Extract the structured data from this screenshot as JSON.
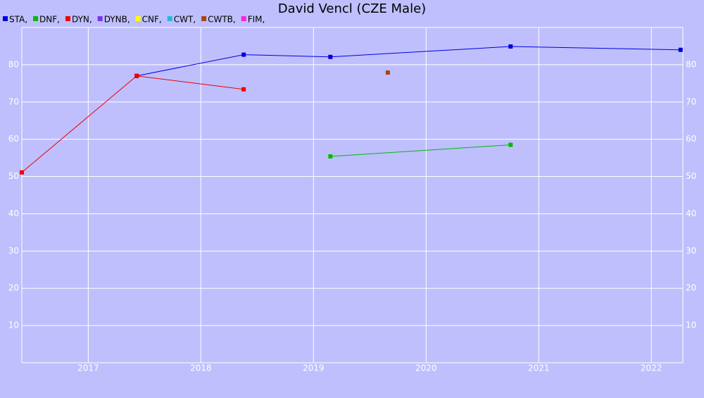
{
  "chart_data": {
    "type": "line",
    "title": "David Vencl (CZE Male)",
    "xlim": [
      2016.41,
      2022.28
    ],
    "xticks": [
      2017,
      2018,
      2019,
      2020,
      2021,
      2022
    ],
    "ylim": [
      0,
      90
    ],
    "yticks": [
      10,
      20,
      30,
      40,
      50,
      60,
      70,
      80
    ],
    "grid": true,
    "series": [
      {
        "name": "STA,",
        "color": "#0000dd",
        "x": [
          2017.43,
          2018.38,
          2019.15,
          2020.75,
          2022.26
        ],
        "values": [
          77,
          82.7,
          82.1,
          84.9,
          84.0
        ]
      },
      {
        "name": "DNF,",
        "color": "#00bb00",
        "x": [
          2019.15,
          2020.75
        ],
        "values": [
          55.4,
          58.5
        ]
      },
      {
        "name": "DYN,",
        "color": "#ee0000",
        "x": [
          2016.41,
          2017.43,
          2018.38
        ],
        "values": [
          51.1,
          77.0,
          73.4
        ]
      },
      {
        "name": "DYNB,",
        "color": "#7733ee",
        "x": [],
        "values": []
      },
      {
        "name": "CNF,",
        "color": "#ffff00",
        "x": [],
        "values": []
      },
      {
        "name": "CWT,",
        "color": "#22bbdd",
        "x": [],
        "values": []
      },
      {
        "name": "CWTB,",
        "color": "#aa4411",
        "x": [
          2019.66
        ],
        "values": [
          77.9
        ]
      },
      {
        "name": "FIM,",
        "color": "#ff22dd",
        "x": [],
        "values": []
      }
    ]
  }
}
